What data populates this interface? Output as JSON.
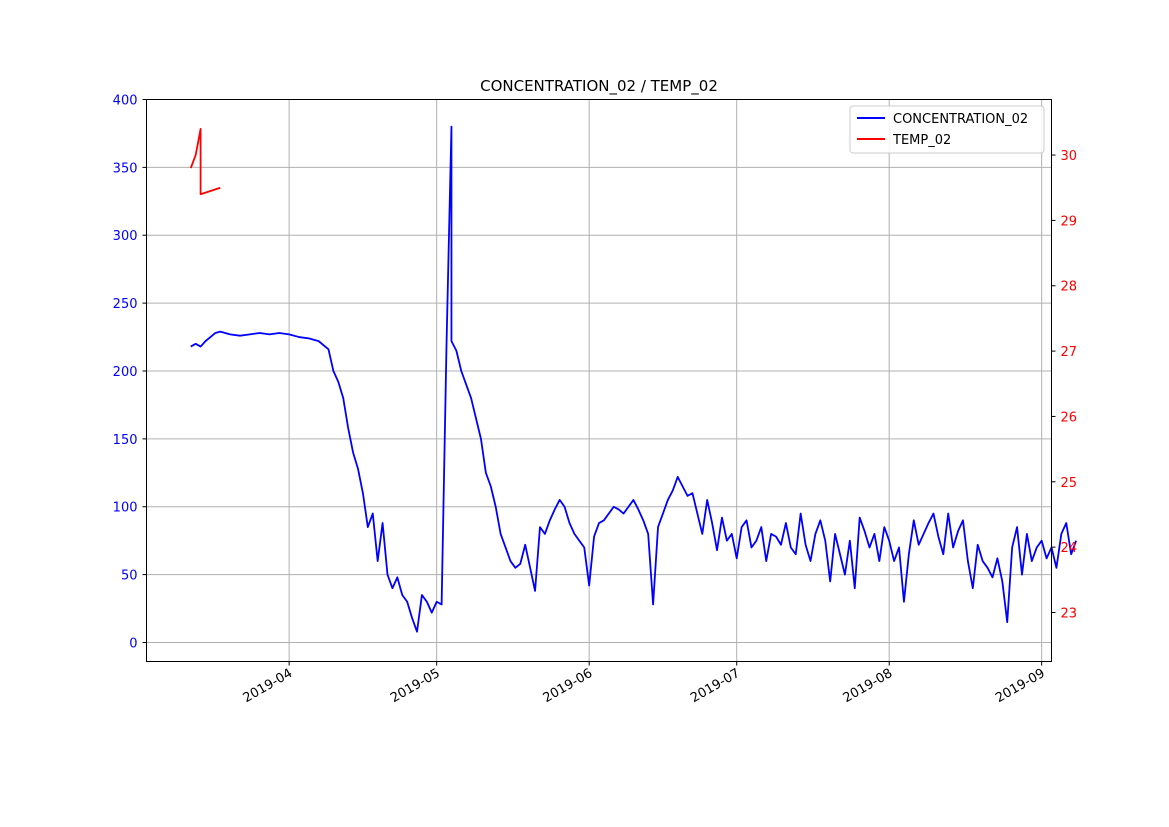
{
  "chart_data": {
    "type": "line",
    "title": "CONCENTRATION_02 / TEMP_02",
    "xlabel": "",
    "ylabel_left": "",
    "ylabel_right": "",
    "grid": true,
    "legend_position": "top-right",
    "x_range": [
      "2019-03-03",
      "2019-09-03"
    ],
    "x_ticks": [
      "2019-04",
      "2019-05",
      "2019-06",
      "2019-07",
      "2019-08",
      "2019-09"
    ],
    "y_left": {
      "range": [
        -14,
        400
      ],
      "ticks": [
        "0",
        "50",
        "100",
        "150",
        "200",
        "250",
        "300",
        "350",
        "400"
      ],
      "color": "#0000ff"
    },
    "y_right": {
      "range": [
        22.25,
        30.85
      ],
      "ticks": [
        "23",
        "24",
        "25",
        "26",
        "27",
        "28",
        "29",
        "30"
      ],
      "color": "#ff0000"
    },
    "series": [
      {
        "name": "CONCENTRATION_02",
        "axis": "left",
        "color": "#0000ff",
        "points": [
          [
            "2019-03-12",
            218
          ],
          [
            "2019-03-13",
            220
          ],
          [
            "2019-03-14",
            218
          ],
          [
            "2019-03-15",
            222
          ],
          [
            "2019-03-16",
            225
          ],
          [
            "2019-03-17",
            228
          ],
          [
            "2019-03-18",
            229
          ],
          [
            "2019-03-20",
            227
          ],
          [
            "2019-03-22",
            226
          ],
          [
            "2019-03-24",
            227
          ],
          [
            "2019-03-26",
            228
          ],
          [
            "2019-03-28",
            227
          ],
          [
            "2019-03-30",
            228
          ],
          [
            "2019-04-01",
            227
          ],
          [
            "2019-04-03",
            225
          ],
          [
            "2019-04-05",
            224
          ],
          [
            "2019-04-07",
            222
          ],
          [
            "2019-04-09",
            216
          ],
          [
            "2019-04-10",
            200
          ],
          [
            "2019-04-11",
            192
          ],
          [
            "2019-04-12",
            180
          ],
          [
            "2019-04-13",
            158
          ],
          [
            "2019-04-14",
            140
          ],
          [
            "2019-04-15",
            128
          ],
          [
            "2019-04-16",
            110
          ],
          [
            "2019-04-17",
            85
          ],
          [
            "2019-04-18",
            95
          ],
          [
            "2019-04-19",
            60
          ],
          [
            "2019-04-20",
            88
          ],
          [
            "2019-04-21",
            50
          ],
          [
            "2019-04-22",
            40
          ],
          [
            "2019-04-23",
            48
          ],
          [
            "2019-04-24",
            35
          ],
          [
            "2019-04-25",
            30
          ],
          [
            "2019-04-26",
            18
          ],
          [
            "2019-04-27",
            8
          ],
          [
            "2019-04-28",
            35
          ],
          [
            "2019-04-29",
            30
          ],
          [
            "2019-04-30",
            22
          ],
          [
            "2019-05-01",
            30
          ],
          [
            "2019-05-02",
            28
          ],
          [
            "2019-05-03",
            220
          ],
          [
            "2019-05-04",
            380
          ],
          [
            "2019-05-04",
            222
          ],
          [
            "2019-05-05",
            215
          ],
          [
            "2019-05-06",
            200
          ],
          [
            "2019-05-08",
            180
          ],
          [
            "2019-05-10",
            150
          ],
          [
            "2019-05-11",
            125
          ],
          [
            "2019-05-12",
            115
          ],
          [
            "2019-05-13",
            100
          ],
          [
            "2019-05-14",
            80
          ],
          [
            "2019-05-15",
            70
          ],
          [
            "2019-05-16",
            60
          ],
          [
            "2019-05-17",
            55
          ],
          [
            "2019-05-18",
            58
          ],
          [
            "2019-05-19",
            72
          ],
          [
            "2019-05-20",
            55
          ],
          [
            "2019-05-21",
            38
          ],
          [
            "2019-05-22",
            85
          ],
          [
            "2019-05-23",
            80
          ],
          [
            "2019-05-24",
            90
          ],
          [
            "2019-05-25",
            98
          ],
          [
            "2019-05-26",
            105
          ],
          [
            "2019-05-27",
            100
          ],
          [
            "2019-05-28",
            88
          ],
          [
            "2019-05-29",
            80
          ],
          [
            "2019-05-30",
            75
          ],
          [
            "2019-05-31",
            70
          ],
          [
            "2019-06-01",
            42
          ],
          [
            "2019-06-02",
            78
          ],
          [
            "2019-06-03",
            88
          ],
          [
            "2019-06-04",
            90
          ],
          [
            "2019-06-05",
            95
          ],
          [
            "2019-06-06",
            100
          ],
          [
            "2019-06-07",
            98
          ],
          [
            "2019-06-08",
            95
          ],
          [
            "2019-06-09",
            100
          ],
          [
            "2019-06-10",
            105
          ],
          [
            "2019-06-11",
            98
          ],
          [
            "2019-06-12",
            90
          ],
          [
            "2019-06-13",
            80
          ],
          [
            "2019-06-14",
            28
          ],
          [
            "2019-06-15",
            85
          ],
          [
            "2019-06-16",
            95
          ],
          [
            "2019-06-17",
            105
          ],
          [
            "2019-06-18",
            112
          ],
          [
            "2019-06-19",
            122
          ],
          [
            "2019-06-20",
            115
          ],
          [
            "2019-06-21",
            108
          ],
          [
            "2019-06-22",
            110
          ],
          [
            "2019-06-23",
            95
          ],
          [
            "2019-06-24",
            80
          ],
          [
            "2019-06-25",
            105
          ],
          [
            "2019-06-26",
            88
          ],
          [
            "2019-06-27",
            68
          ],
          [
            "2019-06-28",
            92
          ],
          [
            "2019-06-29",
            75
          ],
          [
            "2019-06-30",
            80
          ],
          [
            "2019-07-01",
            62
          ],
          [
            "2019-07-02",
            85
          ],
          [
            "2019-07-03",
            90
          ],
          [
            "2019-07-04",
            70
          ],
          [
            "2019-07-05",
            75
          ],
          [
            "2019-07-06",
            85
          ],
          [
            "2019-07-07",
            60
          ],
          [
            "2019-07-08",
            80
          ],
          [
            "2019-07-09",
            78
          ],
          [
            "2019-07-10",
            72
          ],
          [
            "2019-07-11",
            88
          ],
          [
            "2019-07-12",
            70
          ],
          [
            "2019-07-13",
            65
          ],
          [
            "2019-07-14",
            95
          ],
          [
            "2019-07-15",
            72
          ],
          [
            "2019-07-16",
            60
          ],
          [
            "2019-07-17",
            80
          ],
          [
            "2019-07-18",
            90
          ],
          [
            "2019-07-19",
            75
          ],
          [
            "2019-07-20",
            45
          ],
          [
            "2019-07-21",
            80
          ],
          [
            "2019-07-22",
            65
          ],
          [
            "2019-07-23",
            50
          ],
          [
            "2019-07-24",
            75
          ],
          [
            "2019-07-25",
            40
          ],
          [
            "2019-07-26",
            92
          ],
          [
            "2019-07-27",
            82
          ],
          [
            "2019-07-28",
            70
          ],
          [
            "2019-07-29",
            80
          ],
          [
            "2019-07-30",
            60
          ],
          [
            "2019-07-31",
            85
          ],
          [
            "2019-08-01",
            75
          ],
          [
            "2019-08-02",
            60
          ],
          [
            "2019-08-03",
            70
          ],
          [
            "2019-08-04",
            30
          ],
          [
            "2019-08-05",
            65
          ],
          [
            "2019-08-06",
            90
          ],
          [
            "2019-08-07",
            72
          ],
          [
            "2019-08-08",
            80
          ],
          [
            "2019-08-09",
            88
          ],
          [
            "2019-08-10",
            95
          ],
          [
            "2019-08-11",
            78
          ],
          [
            "2019-08-12",
            65
          ],
          [
            "2019-08-13",
            95
          ],
          [
            "2019-08-14",
            70
          ],
          [
            "2019-08-15",
            82
          ],
          [
            "2019-08-16",
            90
          ],
          [
            "2019-08-17",
            60
          ],
          [
            "2019-08-18",
            40
          ],
          [
            "2019-08-19",
            72
          ],
          [
            "2019-08-20",
            60
          ],
          [
            "2019-08-21",
            55
          ],
          [
            "2019-08-22",
            48
          ],
          [
            "2019-08-23",
            62
          ],
          [
            "2019-08-24",
            45
          ],
          [
            "2019-08-25",
            15
          ],
          [
            "2019-08-26",
            70
          ],
          [
            "2019-08-27",
            85
          ],
          [
            "2019-08-28",
            50
          ],
          [
            "2019-08-29",
            80
          ],
          [
            "2019-08-30",
            60
          ],
          [
            "2019-08-31",
            70
          ],
          [
            "2019-09-01",
            75
          ],
          [
            "2019-09-02",
            62
          ],
          [
            "2019-09-03",
            70
          ],
          [
            "2019-09-04",
            55
          ],
          [
            "2019-09-05",
            80
          ],
          [
            "2019-09-06",
            88
          ],
          [
            "2019-09-07",
            65
          ],
          [
            "2019-09-08",
            75
          ]
        ]
      },
      {
        "name": "TEMP_02",
        "axis": "right",
        "color": "#ff0000",
        "points": [
          [
            "2019-03-12",
            29.8
          ],
          [
            "2019-03-13",
            30.0
          ],
          [
            "2019-03-14",
            30.4
          ],
          [
            "2019-03-14",
            29.4
          ],
          [
            "2019-03-16",
            29.45
          ],
          [
            "2019-03-18",
            29.5
          ]
        ]
      }
    ]
  }
}
